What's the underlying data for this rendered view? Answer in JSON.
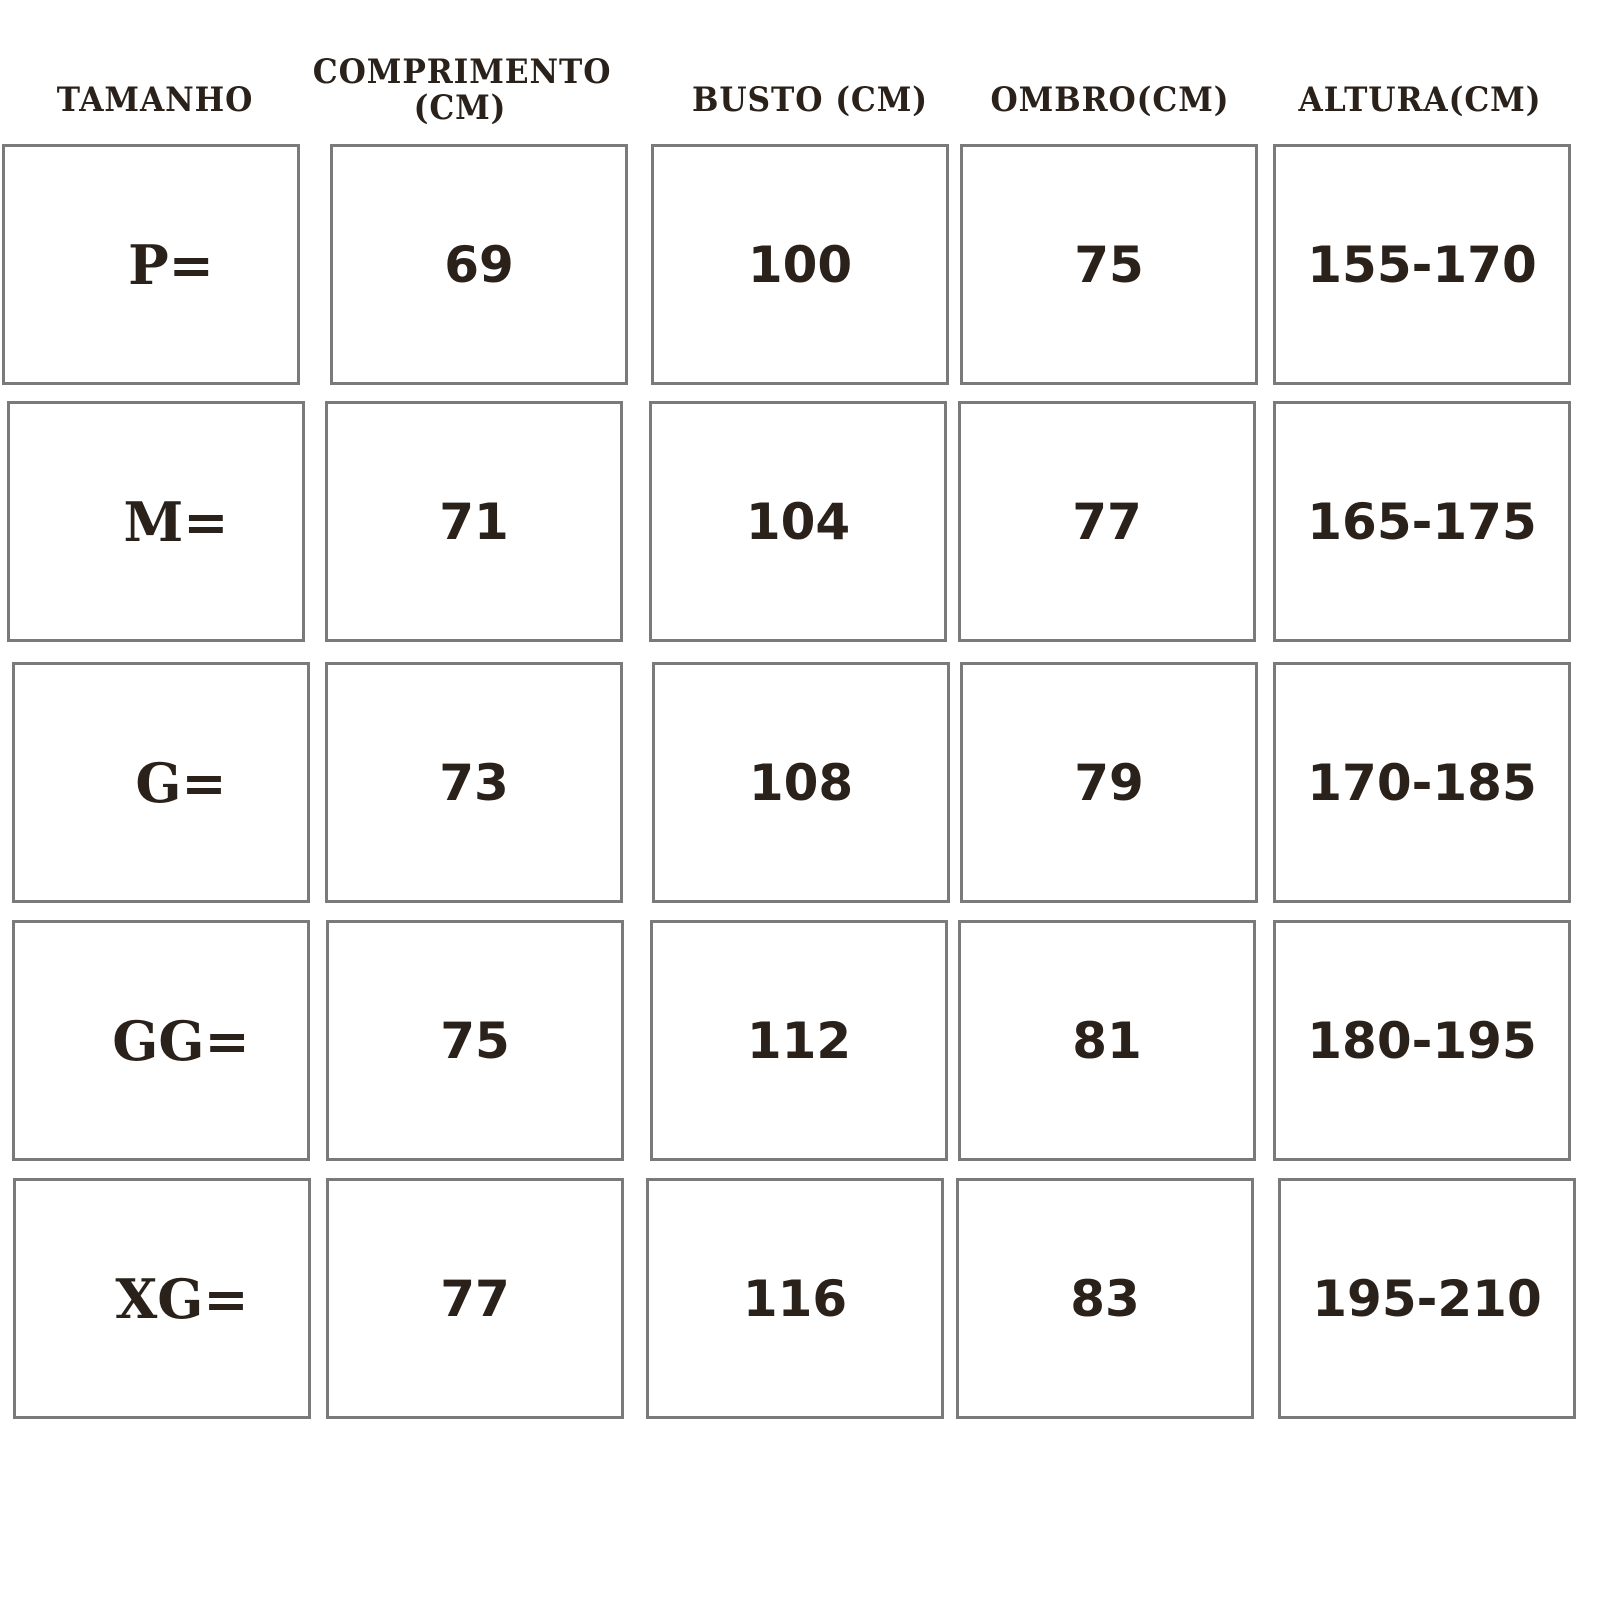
{
  "headers": [
    "TAMANHO",
    "COMPRIMENTO (CM)",
    "BUSTO (CM)",
    "OMBRO(CM)",
    "ALTURA(CM)"
  ],
  "rows": [
    [
      "P=",
      "69",
      "100",
      "75",
      "155-170"
    ],
    [
      "M=",
      "71",
      "104",
      "77",
      "165-175"
    ],
    [
      "G=",
      "73",
      "108",
      "79",
      "170-185"
    ],
    [
      "GG=",
      "75",
      "112",
      "81",
      "180-195"
    ],
    [
      "XG=",
      "77",
      "116",
      "83",
      "195-210"
    ]
  ],
  "colors": {
    "text": "#2a211b",
    "border": "#7a7a7a",
    "background": "#ffffff"
  }
}
